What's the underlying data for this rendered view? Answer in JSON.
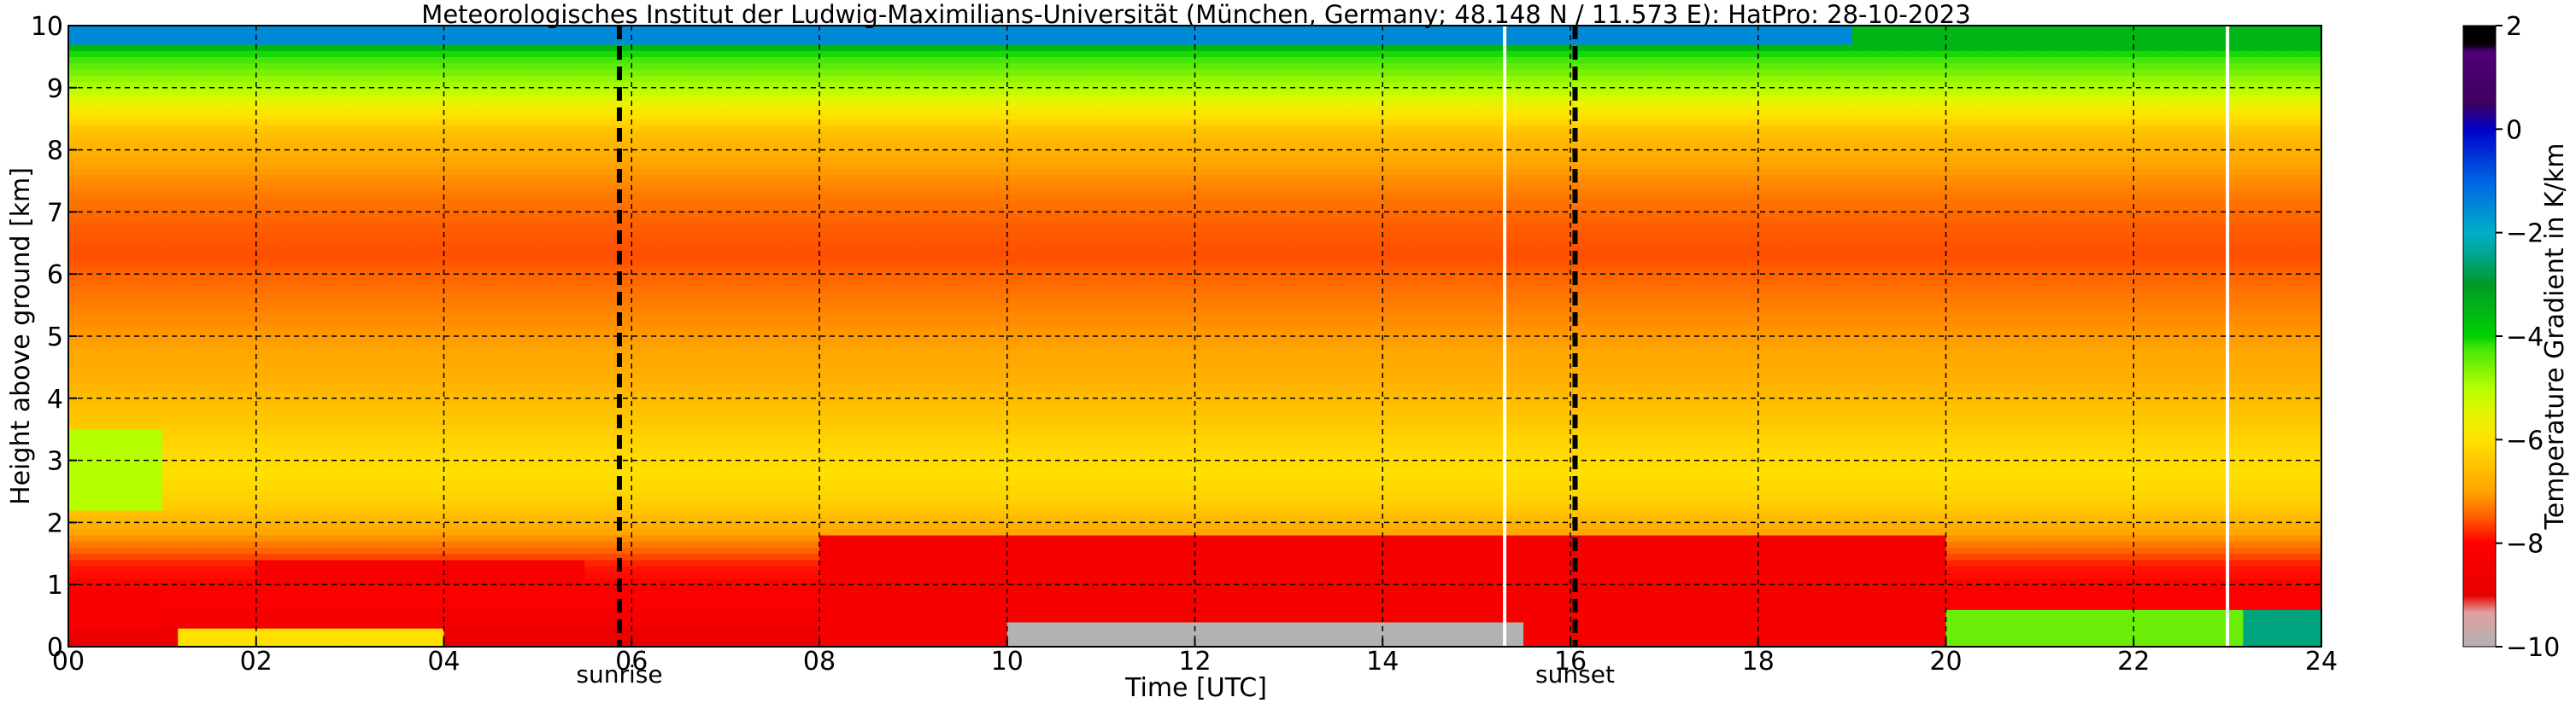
{
  "chart_data": {
    "type": "heatmap",
    "title": "Meteorologisches Institut der Ludwig-Maximilians-Universität (München, Germany; 48.148 N / 11.573 E):    HatPro: 28-10-2023",
    "xlabel": "Time [UTC]",
    "ylabel": "Height above ground [km]",
    "xlim": [
      0,
      24
    ],
    "ylim": [
      0,
      10
    ],
    "x_ticks": [
      0,
      2,
      4,
      6,
      8,
      10,
      12,
      14,
      16,
      18,
      20,
      22,
      24
    ],
    "x_tick_labels": [
      "00",
      "02",
      "04",
      "06",
      "08",
      "10",
      "12",
      "14",
      "16",
      "18",
      "20",
      "22",
      "24"
    ],
    "y_ticks": [
      0,
      1,
      2,
      3,
      4,
      5,
      6,
      7,
      8,
      9,
      10
    ],
    "y_tick_labels": [
      "0",
      "1",
      "2",
      "3",
      "4",
      "5",
      "6",
      "7",
      "8",
      "9",
      "10"
    ],
    "grid": true,
    "grid_style": "dashed",
    "events": [
      {
        "time": 5.87,
        "label": "sunrise"
      },
      {
        "time": 16.05,
        "label": "sunset"
      }
    ],
    "data_gaps": [
      15.3,
      23.0
    ],
    "colorbar": {
      "label": "Temperature Gradient in K/km",
      "range": [
        -10,
        2
      ],
      "ticks": [
        -10,
        -8,
        -6,
        -4,
        -2,
        0,
        2
      ],
      "tick_labels": [
        "−10",
        "−8",
        "−6",
        "−4",
        "−2",
        "0",
        "2"
      ]
    },
    "profile_gradient": [
      {
        "height": 0.05,
        "value": -9.0
      },
      {
        "height": 0.3,
        "value": -8.6
      },
      {
        "height": 0.6,
        "value": -8.2
      },
      {
        "height": 1.0,
        "value": -8.0
      },
      {
        "height": 1.3,
        "value": -7.9
      },
      {
        "height": 1.6,
        "value": -7.4
      },
      {
        "height": 1.9,
        "value": -6.9
      },
      {
        "height": 2.3,
        "value": -6.3
      },
      {
        "height": 2.8,
        "value": -6.0
      },
      {
        "height": 3.3,
        "value": -6.2
      },
      {
        "height": 3.8,
        "value": -6.5
      },
      {
        "height": 4.3,
        "value": -6.8
      },
      {
        "height": 4.8,
        "value": -7.0
      },
      {
        "height": 5.3,
        "value": -7.2
      },
      {
        "height": 5.8,
        "value": -7.4
      },
      {
        "height": 6.3,
        "value": -7.6
      },
      {
        "height": 6.8,
        "value": -7.5
      },
      {
        "height": 7.3,
        "value": -7.3
      },
      {
        "height": 7.8,
        "value": -7.0
      },
      {
        "height": 8.3,
        "value": -6.5
      },
      {
        "height": 8.7,
        "value": -5.7
      },
      {
        "height": 9.0,
        "value": -5.0
      },
      {
        "height": 9.3,
        "value": -4.5
      },
      {
        "height": 9.6,
        "value": -4.0
      },
      {
        "height": 9.85,
        "value": -1.8
      },
      {
        "height": 10.0,
        "value": -0.5
      }
    ],
    "features": [
      {
        "t_start": 0.0,
        "t_end": 1.0,
        "h_start": 2.2,
        "h_end": 3.5,
        "value": -5.0
      },
      {
        "t_start": 0.0,
        "t_end": 1.0,
        "h_start": 0.3,
        "h_end": 0.9,
        "value": -8.3
      },
      {
        "t_start": 2.0,
        "t_end": 5.5,
        "h_start": 1.0,
        "h_end": 1.4,
        "value": -8.3
      },
      {
        "t_start": 8.0,
        "t_end": 20.0,
        "h_start": 0.0,
        "h_end": 1.8,
        "value": -8.4
      },
      {
        "t_start": 10.0,
        "t_end": 15.5,
        "h_start": 0.0,
        "h_end": 0.4,
        "value": -10.0
      },
      {
        "t_start": 20.0,
        "t_end": 24.0,
        "h_start": 0.0,
        "h_end": 0.6,
        "value": -4.5
      },
      {
        "t_start": 23.2,
        "t_end": 24.0,
        "h_start": 0.0,
        "h_end": 0.6,
        "value": -2.5
      },
      {
        "t_start": 1.2,
        "t_end": 4.0,
        "h_start": 0.0,
        "h_end": 0.3,
        "value": -6.0
      },
      {
        "t_start": 0.0,
        "t_end": 24.0,
        "h_start": 9.7,
        "h_end": 10.0,
        "value": -1.5
      },
      {
        "t_start": 19.0,
        "t_end": 24.0,
        "h_start": 9.6,
        "h_end": 10.0,
        "value": -3.5
      }
    ]
  }
}
